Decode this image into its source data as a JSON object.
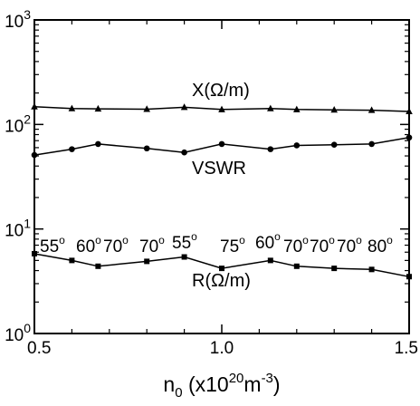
{
  "chart_data": {
    "type": "line",
    "title": "",
    "xlabel": {
      "base": "n",
      "sub": "0",
      "open": " (x10",
      "exp1": "20",
      "mid": "m",
      "exp2": "-3",
      "close": ")"
    },
    "ylabel": "",
    "xlim": [
      0.5,
      1.5
    ],
    "ylim": [
      1,
      1000
    ],
    "yscale": "log",
    "grid": false,
    "x_ticks": [
      {
        "value": 0.5,
        "label": "0.5"
      },
      {
        "value": 1.0,
        "label": "1.0"
      },
      {
        "value": 1.5,
        "label": "1.5"
      }
    ],
    "y_ticks": [
      {
        "value": 1,
        "base": "10",
        "exp": "0"
      },
      {
        "value": 10,
        "base": "10",
        "exp": "1"
      },
      {
        "value": 100,
        "base": "10",
        "exp": "2"
      },
      {
        "value": 1000,
        "base": "10",
        "exp": "3"
      }
    ],
    "x": [
      0.5,
      0.6,
      0.67,
      0.8,
      0.9,
      1.0,
      1.13,
      1.2,
      1.3,
      1.4,
      1.5
    ],
    "series": [
      {
        "name": "X(Ω/m)",
        "marker": "triangle",
        "values": [
          148,
          142,
          141,
          140,
          146,
          139,
          142,
          139,
          138,
          137,
          133
        ]
      },
      {
        "name": "VSWR",
        "marker": "circle",
        "values": [
          51,
          58,
          65,
          59,
          54,
          65,
          58,
          63,
          64,
          65,
          75
        ]
      },
      {
        "name": "R(Ω/m)",
        "marker": "square",
        "values": [
          5.8,
          5.0,
          4.4,
          4.9,
          5.4,
          4.2,
          5.0,
          4.4,
          4.2,
          4.1,
          3.5
        ]
      }
    ],
    "angle_labels": [
      {
        "base": "55",
        "deg": "o"
      },
      {
        "base": "60",
        "deg": "o"
      },
      {
        "base": "70",
        "deg": "o"
      },
      {
        "base": "70",
        "deg": "o"
      },
      {
        "base": "55",
        "deg": "o"
      },
      {
        "base": "75",
        "deg": "o"
      },
      {
        "base": "60",
        "deg": "o"
      },
      {
        "base": "70",
        "deg": "o"
      },
      {
        "base": "70",
        "deg": "o"
      },
      {
        "base": "70",
        "deg": "o"
      },
      {
        "base": "80",
        "deg": "o"
      }
    ],
    "colors": {
      "line": "#000000",
      "background": "#ffffff"
    }
  }
}
